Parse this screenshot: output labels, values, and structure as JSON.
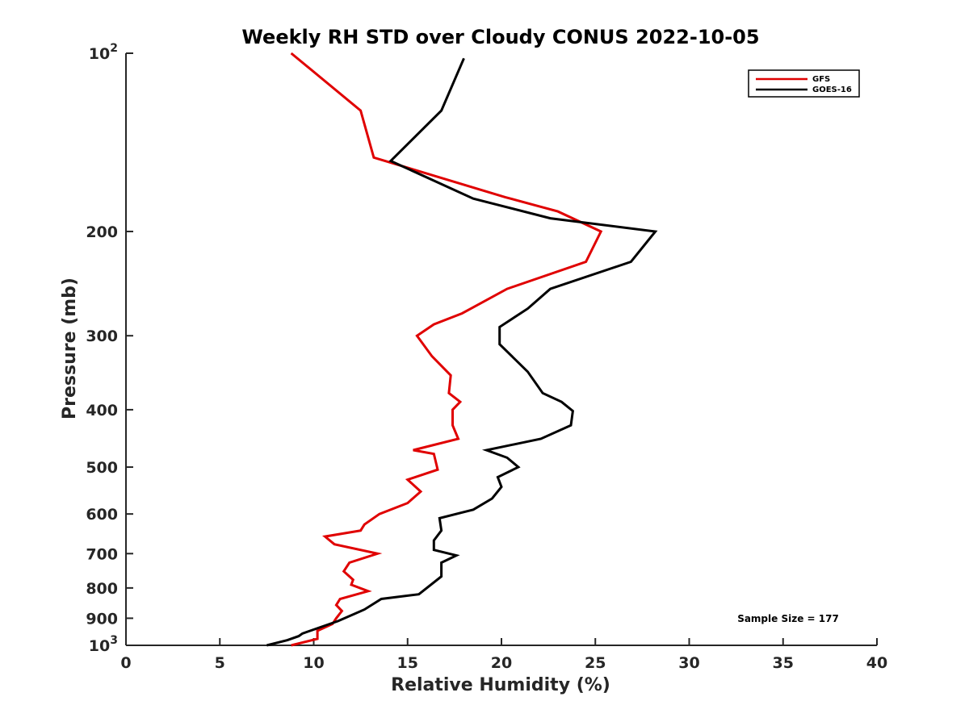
{
  "chart_data": {
    "type": "line",
    "title": "Weekly RH STD over Cloudy CONUS 2022-10-05",
    "xlabel": "Relative Humidity (%)",
    "ylabel": "Pressure (mb)",
    "xlim": [
      0,
      40
    ],
    "ylim": [
      100,
      1000
    ],
    "yscale": "log",
    "y_reversed": true,
    "x_ticks": [
      "0",
      "5",
      "10",
      "15",
      "20",
      "25",
      "30",
      "35",
      "40"
    ],
    "y_ticks": [
      {
        "value": 100,
        "base": "10",
        "exp": "2"
      },
      {
        "value": 200,
        "label": "200"
      },
      {
        "value": 300,
        "label": "300"
      },
      {
        "value": 400,
        "label": "400"
      },
      {
        "value": 500,
        "label": "500"
      },
      {
        "value": 600,
        "label": "600"
      },
      {
        "value": 700,
        "label": "700"
      },
      {
        "value": 800,
        "label": "800"
      },
      {
        "value": 900,
        "label": "900"
      },
      {
        "value": 1000,
        "base": "10",
        "exp": "3"
      }
    ],
    "grid": false,
    "legend_position": "top-right",
    "annotation": "Sample Size = 177",
    "series": [
      {
        "name": "GFS",
        "color": "#e00000",
        "points": [
          [
            8.8,
            100
          ],
          [
            12.5,
            125
          ],
          [
            13.2,
            150
          ],
          [
            20.2,
            175
          ],
          [
            23.0,
            185
          ],
          [
            25.3,
            200
          ],
          [
            24.5,
            225
          ],
          [
            20.3,
            250
          ],
          [
            17.9,
            275
          ],
          [
            16.4,
            287
          ],
          [
            15.5,
            300
          ],
          [
            16.3,
            325
          ],
          [
            17.3,
            350
          ],
          [
            17.2,
            375
          ],
          [
            17.8,
            388
          ],
          [
            17.4,
            400
          ],
          [
            17.4,
            425
          ],
          [
            17.7,
            448
          ],
          [
            15.3,
            468
          ],
          [
            16.4,
            475
          ],
          [
            16.6,
            505
          ],
          [
            15.0,
            525
          ],
          [
            15.7,
            550
          ],
          [
            15.0,
            575
          ],
          [
            13.5,
            600
          ],
          [
            12.7,
            625
          ],
          [
            12.5,
            640
          ],
          [
            10.6,
            655
          ],
          [
            11.1,
            675
          ],
          [
            13.4,
            700
          ],
          [
            11.9,
            725
          ],
          [
            11.6,
            750
          ],
          [
            12.1,
            775
          ],
          [
            12.0,
            790
          ],
          [
            12.9,
            810
          ],
          [
            11.4,
            835
          ],
          [
            11.2,
            855
          ],
          [
            11.5,
            875
          ],
          [
            11.2,
            900
          ],
          [
            11.0,
            920
          ],
          [
            10.2,
            945
          ],
          [
            10.2,
            975
          ],
          [
            8.8,
            1000
          ]
        ]
      },
      {
        "name": "GOES-16",
        "color": "#000000",
        "points": [
          [
            18.0,
            102
          ],
          [
            16.8,
            125
          ],
          [
            14.1,
            152
          ],
          [
            18.5,
            176
          ],
          [
            22.6,
            190
          ],
          [
            28.2,
            200
          ],
          [
            26.9,
            225
          ],
          [
            22.6,
            250
          ],
          [
            21.4,
            270
          ],
          [
            19.9,
            290
          ],
          [
            19.9,
            310
          ],
          [
            21.4,
            345
          ],
          [
            22.2,
            375
          ],
          [
            23.2,
            388
          ],
          [
            23.8,
            402
          ],
          [
            23.7,
            425
          ],
          [
            22.1,
            448
          ],
          [
            19.2,
            468
          ],
          [
            20.3,
            482
          ],
          [
            20.9,
            500
          ],
          [
            19.8,
            520
          ],
          [
            20.0,
            540
          ],
          [
            19.5,
            565
          ],
          [
            18.5,
            590
          ],
          [
            16.7,
            610
          ],
          [
            16.8,
            640
          ],
          [
            16.4,
            665
          ],
          [
            16.4,
            690
          ],
          [
            17.6,
            705
          ],
          [
            16.8,
            725
          ],
          [
            16.8,
            765
          ],
          [
            15.6,
            820
          ],
          [
            13.6,
            835
          ],
          [
            12.7,
            870
          ],
          [
            11.3,
            910
          ],
          [
            9.4,
            955
          ],
          [
            9.2,
            965
          ],
          [
            8.6,
            980
          ],
          [
            7.5,
            1000
          ]
        ]
      }
    ]
  }
}
